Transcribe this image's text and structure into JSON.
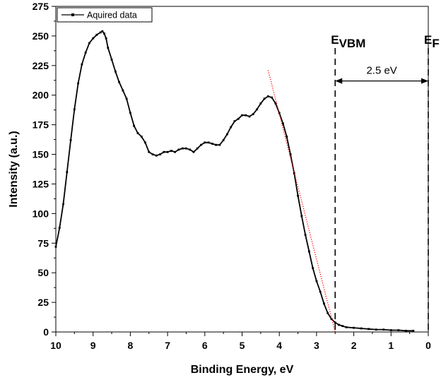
{
  "chart_data": {
    "type": "line",
    "title": "",
    "xlabel": "Binding Energy, eV",
    "ylabel": "Intensity (a.u.)",
    "xlim": [
      10,
      0
    ],
    "x_reversed": true,
    "ylim": [
      0,
      275
    ],
    "x_ticks": [
      10,
      9,
      8,
      7,
      6,
      5,
      4,
      3,
      2,
      1,
      0
    ],
    "y_ticks": [
      0,
      25,
      50,
      75,
      100,
      125,
      150,
      175,
      200,
      225,
      250,
      275
    ],
    "grid": false,
    "legend": {
      "placement": "top-left",
      "entries": [
        "Aquired data"
      ]
    },
    "series": [
      {
        "name": "Aquired data",
        "color": "#000000",
        "marker": "square",
        "x": [
          10.0,
          9.9,
          9.8,
          9.7,
          9.6,
          9.5,
          9.4,
          9.3,
          9.2,
          9.1,
          9.0,
          8.9,
          8.8,
          8.75,
          8.7,
          8.65,
          8.6,
          8.5,
          8.4,
          8.3,
          8.2,
          8.1,
          8.0,
          7.9,
          7.8,
          7.7,
          7.6,
          7.5,
          7.4,
          7.3,
          7.2,
          7.1,
          7.0,
          6.9,
          6.8,
          6.7,
          6.6,
          6.5,
          6.4,
          6.3,
          6.2,
          6.1,
          6.0,
          5.9,
          5.8,
          5.7,
          5.6,
          5.5,
          5.4,
          5.3,
          5.2,
          5.1,
          5.0,
          4.9,
          4.8,
          4.7,
          4.6,
          4.5,
          4.4,
          4.3,
          4.2,
          4.1,
          4.0,
          3.9,
          3.8,
          3.7,
          3.6,
          3.5,
          3.4,
          3.3,
          3.2,
          3.1,
          3.0,
          2.9,
          2.8,
          2.7,
          2.6,
          2.5,
          2.4,
          2.3,
          2.2,
          2.0,
          1.8,
          1.6,
          1.4,
          1.2,
          1.0,
          0.8,
          0.6,
          0.4
        ],
        "y": [
          72,
          88,
          108,
          135,
          162,
          188,
          210,
          226,
          236,
          244,
          248,
          251,
          253,
          254,
          252,
          248,
          240,
          230,
          220,
          211,
          204,
          197,
          185,
          174,
          168,
          165,
          160,
          152,
          150,
          149,
          150,
          152,
          152,
          153,
          152,
          154,
          155,
          155,
          154,
          152,
          155,
          158,
          160,
          160,
          159,
          158,
          158,
          162,
          167,
          173,
          178,
          180,
          183,
          183,
          182,
          184,
          188,
          193,
          197,
          199,
          198,
          193,
          185,
          176,
          165,
          150,
          134,
          115,
          98,
          82,
          68,
          54,
          43,
          34,
          24,
          16,
          11,
          8,
          6,
          5,
          4,
          3.5,
          3,
          2.5,
          2,
          2,
          1.5,
          1.5,
          1,
          1
        ]
      }
    ],
    "fit_line": {
      "color": "#ff0000",
      "style": "dotted",
      "x": [
        4.3,
        2.5
      ],
      "y": [
        221,
        0
      ]
    },
    "markers": [
      {
        "name": "VBM",
        "main": "E",
        "sub": "VBM",
        "x": 2.5
      },
      {
        "name": "F",
        "main": "E",
        "sub": "F",
        "x": 0.0
      }
    ],
    "annotation": {
      "text": "2.5 eV",
      "from": 2.5,
      "to": 0.0,
      "y": 212
    }
  }
}
